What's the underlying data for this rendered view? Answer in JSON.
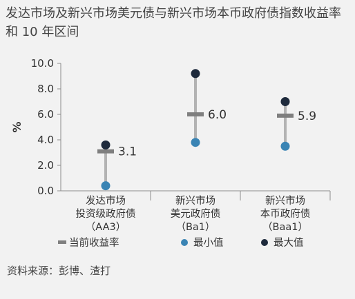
{
  "title": "发达市场及新兴市场美元债与新兴市场本币政府债指数收益率和 10 年区间",
  "source": "资料来源：彭博、渣打",
  "legend": {
    "current": "当前收益率",
    "min": "最小值",
    "max": "最大值"
  },
  "colors": {
    "range_line": "#b3b3b3",
    "current_marker": "#7f7f7f",
    "min_dot": "#3a84b4",
    "max_dot": "#1e2a3c",
    "axis": "#8c8c8c"
  },
  "chart_data": {
    "type": "range_dot",
    "title": "发达市场及新兴市场美元债与新兴市场本币政府债指数收益率和 10 年区间",
    "ylabel": "%",
    "ylim": [
      0,
      10
    ],
    "yticks": [
      "0.0",
      "2.0",
      "4.0",
      "6.0",
      "8.0",
      "10.0"
    ],
    "categories": [
      [
        "发达市场",
        "投资级政府债",
        "（AA3）"
      ],
      [
        "新兴市场",
        "美元政府债",
        "（Ba1）"
      ],
      [
        "新兴市场",
        "本币政府债",
        "（Baa1）"
      ]
    ],
    "series": [
      {
        "name": "当前收益率",
        "values": [
          3.1,
          6.0,
          5.9
        ],
        "labels": [
          "3.1",
          "6.0",
          "5.9"
        ]
      },
      {
        "name": "最小值",
        "values": [
          0.4,
          3.8,
          3.5
        ]
      },
      {
        "name": "最大值",
        "values": [
          3.6,
          9.2,
          7.0
        ]
      }
    ]
  }
}
